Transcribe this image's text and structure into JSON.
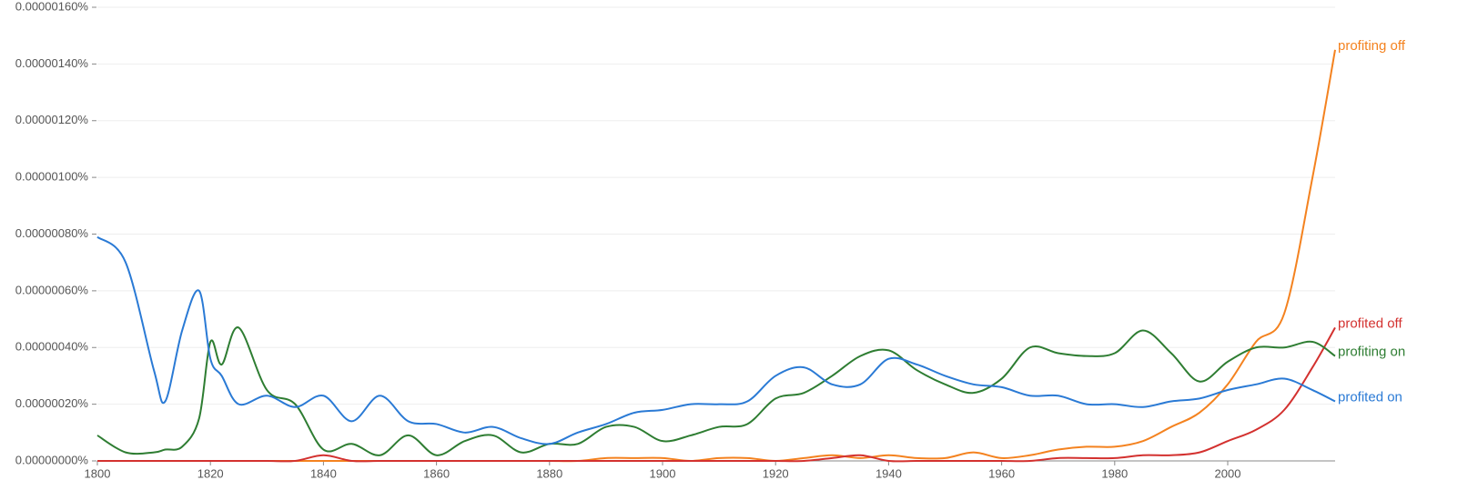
{
  "chart_data": {
    "type": "line",
    "x": [
      1800,
      1805,
      1810,
      1812,
      1815,
      1818,
      1820,
      1822,
      1825,
      1830,
      1835,
      1840,
      1845,
      1850,
      1855,
      1860,
      1865,
      1870,
      1875,
      1880,
      1885,
      1890,
      1895,
      1900,
      1905,
      1910,
      1915,
      1920,
      1925,
      1930,
      1935,
      1940,
      1945,
      1950,
      1955,
      1960,
      1965,
      1970,
      1975,
      1980,
      1985,
      1990,
      1995,
      2000,
      2005,
      2010,
      2015,
      2019
    ],
    "xlim": [
      1800,
      2019
    ],
    "xticks": [
      1800,
      1820,
      1840,
      1860,
      1880,
      1900,
      1920,
      1940,
      1960,
      1980,
      2000
    ],
    "ylim": [
      0,
      1.6e-06
    ],
    "yticks": [
      {
        "value": 0,
        "label": "0.00000000%"
      },
      {
        "value": 2e-07,
        "label": "0.00000020%"
      },
      {
        "value": 4e-07,
        "label": "0.00000040%"
      },
      {
        "value": 6e-07,
        "label": "0.00000060%"
      },
      {
        "value": 8e-07,
        "label": "0.00000080%"
      },
      {
        "value": 1e-06,
        "label": "0.00000100%"
      },
      {
        "value": 1.2e-06,
        "label": "0.00000120%"
      },
      {
        "value": 1.4e-06,
        "label": "0.00000140%"
      },
      {
        "value": 1.6e-06,
        "label": "0.00000160%"
      }
    ],
    "grid": true,
    "series": [
      {
        "name": "profiting off",
        "color": "#f4821f",
        "values": [
          0,
          0,
          0,
          0,
          0,
          0,
          0,
          0,
          0,
          0,
          0,
          0,
          0,
          0,
          0,
          0,
          0,
          0,
          0,
          0,
          0,
          1e-08,
          1e-08,
          1e-08,
          0,
          1e-08,
          1e-08,
          0,
          1e-08,
          2e-08,
          1e-08,
          2e-08,
          1e-08,
          1e-08,
          3e-08,
          1e-08,
          2e-08,
          4e-08,
          5e-08,
          5e-08,
          7e-08,
          1.2e-07,
          1.7e-07,
          2.7e-07,
          4.2e-07,
          5.2e-07,
          1e-06,
          1.45e-06
        ]
      },
      {
        "name": "profited off",
        "color": "#d3312f",
        "values": [
          0,
          0,
          0,
          0,
          0,
          0,
          0,
          0,
          0,
          0,
          0,
          2e-08,
          0,
          0,
          0,
          0,
          0,
          0,
          0,
          0,
          0,
          0,
          0,
          0,
          0,
          0,
          0,
          0,
          0,
          1e-08,
          2e-08,
          0,
          0,
          0,
          0,
          0,
          0,
          1e-08,
          1e-08,
          1e-08,
          2e-08,
          2e-08,
          3e-08,
          7e-08,
          1.1e-07,
          1.8e-07,
          3.3e-07,
          4.7e-07
        ]
      },
      {
        "name": "profiting on",
        "color": "#2e7d32",
        "values": [
          9e-08,
          3e-08,
          3e-08,
          4e-08,
          5e-08,
          1.5e-07,
          4.2e-07,
          3.4e-07,
          4.7e-07,
          2.5e-07,
          2e-07,
          4e-08,
          6e-08,
          2e-08,
          9e-08,
          2e-08,
          7e-08,
          9e-08,
          3e-08,
          6e-08,
          6e-08,
          1.2e-07,
          1.2e-07,
          7e-08,
          9e-08,
          1.2e-07,
          1.3e-07,
          2.2e-07,
          2.4e-07,
          3e-07,
          3.7e-07,
          3.9e-07,
          3.2e-07,
          2.7e-07,
          2.4e-07,
          2.9e-07,
          4e-07,
          3.8e-07,
          3.7e-07,
          3.8e-07,
          4.6e-07,
          3.8e-07,
          2.8e-07,
          3.5e-07,
          4e-07,
          4e-07,
          4.2e-07,
          3.7e-07
        ]
      },
      {
        "name": "profited on",
        "color": "#2a7ad5",
        "values": [
          7.9e-07,
          7e-07,
          3.2e-07,
          2.1e-07,
          4.6e-07,
          6e-07,
          3.6e-07,
          3e-07,
          2e-07,
          2.3e-07,
          1.9e-07,
          2.3e-07,
          1.4e-07,
          2.3e-07,
          1.4e-07,
          1.3e-07,
          1e-07,
          1.2e-07,
          8e-08,
          6e-08,
          1e-07,
          1.3e-07,
          1.7e-07,
          1.8e-07,
          2e-07,
          2e-07,
          2.1e-07,
          3e-07,
          3.3e-07,
          2.7e-07,
          2.7e-07,
          3.6e-07,
          3.4e-07,
          3e-07,
          2.7e-07,
          2.6e-07,
          2.3e-07,
          2.3e-07,
          2e-07,
          2e-07,
          1.9e-07,
          2.1e-07,
          2.2e-07,
          2.5e-07,
          2.7e-07,
          2.9e-07,
          2.5e-07,
          2.1e-07
        ]
      }
    ]
  }
}
